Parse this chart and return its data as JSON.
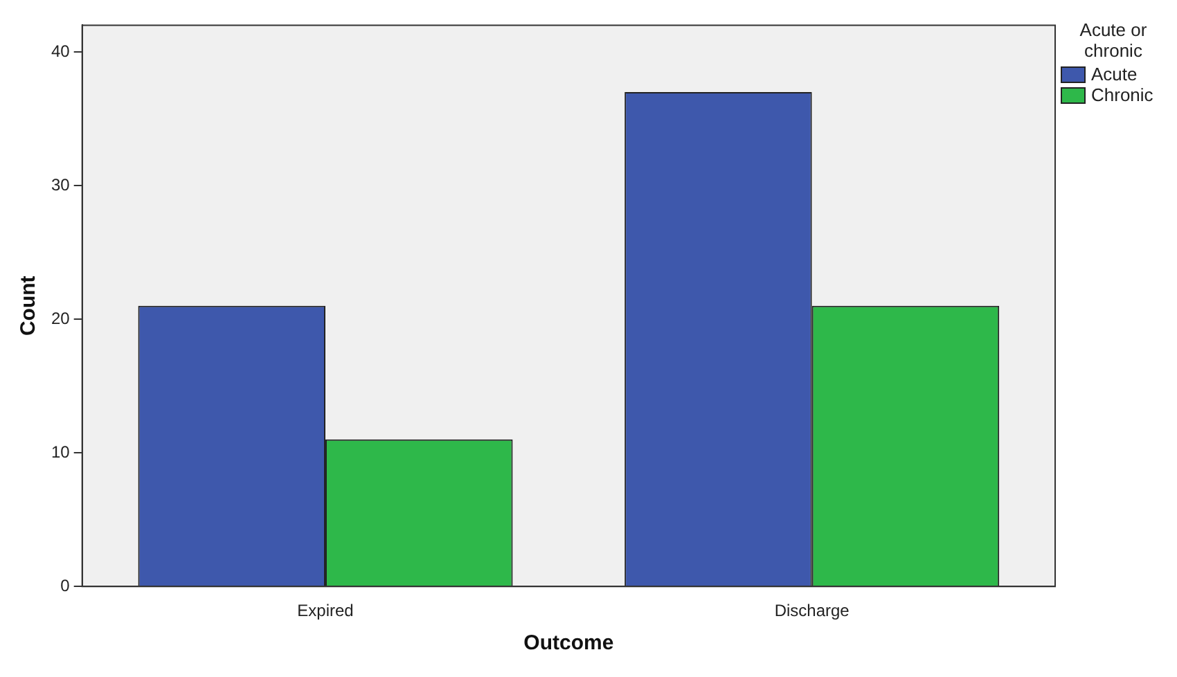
{
  "chart_data": {
    "type": "bar",
    "xlabel": "Outcome",
    "ylabel": "Count",
    "legend_title": "Acute or chronic",
    "categories": [
      "Expired",
      "Discharge"
    ],
    "series": [
      {
        "name": "Acute",
        "color": "#3e58ac",
        "values": [
          21,
          37
        ]
      },
      {
        "name": "Chronic",
        "color": "#2eb84a",
        "values": [
          11,
          21
        ]
      }
    ],
    "ylim": [
      0,
      42
    ],
    "yticks": [
      0,
      10,
      20,
      30,
      40
    ],
    "grid": false,
    "legend": "right"
  }
}
